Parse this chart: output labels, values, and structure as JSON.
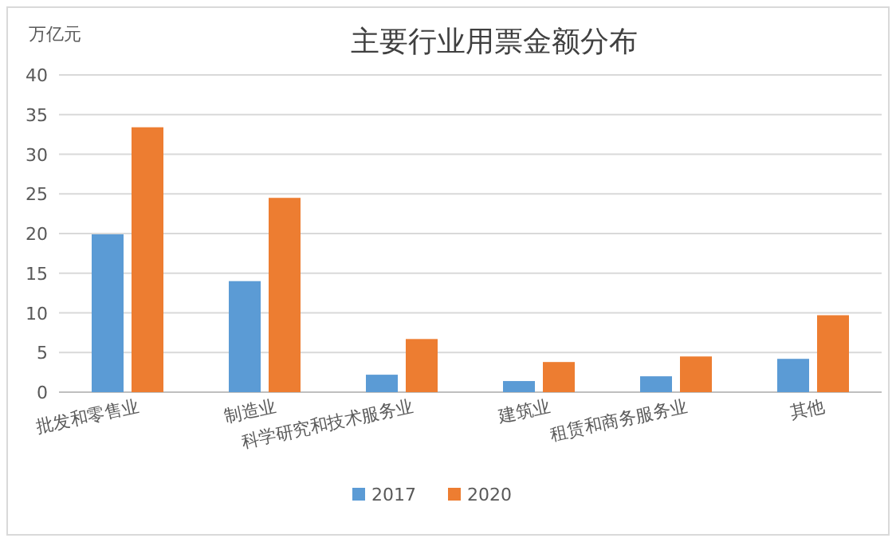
{
  "chart_data": {
    "type": "bar",
    "title": "主要行业用票金额分布",
    "ylabel": "万亿元",
    "categories": [
      "批发和零售业",
      "制造业",
      "科学研究和技术服务业",
      "建筑业",
      "租赁和商务服务业",
      "其他"
    ],
    "series": [
      {
        "name": "2017",
        "color": "#5b9bd5",
        "values": [
          19.9,
          14.0,
          2.2,
          1.4,
          2.0,
          4.2
        ]
      },
      {
        "name": "2020",
        "color": "#ed7d31",
        "values": [
          33.4,
          24.5,
          6.7,
          3.8,
          4.5,
          9.7
        ]
      }
    ],
    "ylim": [
      0,
      40
    ],
    "yticks": [
      0,
      5,
      10,
      15,
      20,
      25,
      30,
      35,
      40
    ],
    "grid": "y",
    "legend": "bottom"
  }
}
